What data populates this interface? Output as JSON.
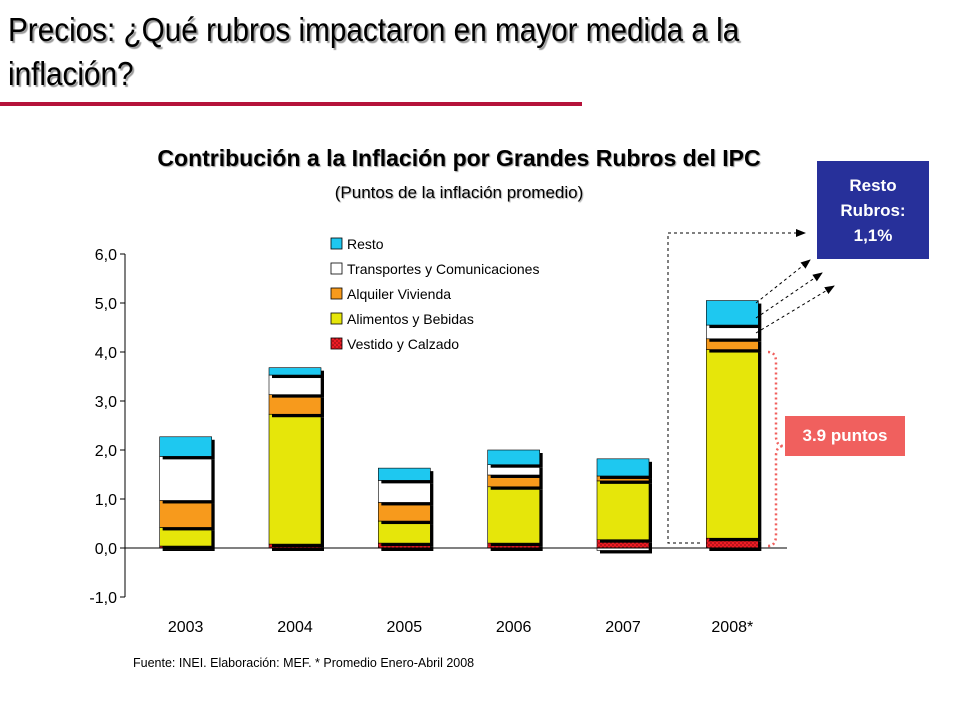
{
  "slide": {
    "title": "Precios: ¿Qué rubros impactaron en mayor medida a la inflación?",
    "source_note": "Fuente: INEI. Elaboración: MEF. * Promedio Enero-Abril 2008"
  },
  "callouts": {
    "resto_lines": [
      "Resto",
      "Rubros:",
      "1,1%"
    ],
    "points": "3.9 puntos"
  },
  "colors": {
    "resto": "#1ec8f0",
    "transportes": "#ffffff",
    "alquiler": "#f79a1c",
    "alimentos": "#e6e60a",
    "vestido": "#ee1c24",
    "title_rule": "#b5123a",
    "resto_box": "#27309a",
    "points_box": "#f0605e"
  },
  "chart_data": {
    "type": "bar",
    "stacked": true,
    "title": "Contribución a la Inflación por Grandes Rubros del IPC",
    "subtitle": "(Puntos de la inflación promedio)",
    "categories": [
      "2003",
      "2004",
      "2005",
      "2006",
      "2007",
      "2008*"
    ],
    "ylim": [
      -1.0,
      6.0
    ],
    "yticks": [
      "-1,0",
      "0,0",
      "1,0",
      "2,0",
      "3,0",
      "4,0",
      "5,0",
      "6,0"
    ],
    "legend_position": "top-center",
    "grid": false,
    "series": [
      {
        "name": "Vestido y Calzado",
        "values": [
          0.04,
          0.08,
          0.1,
          0.1,
          0.17,
          0.2
        ]
      },
      {
        "name": "Alimentos y Bebidas",
        "values": [
          0.38,
          2.65,
          0.45,
          1.15,
          1.2,
          3.85
        ]
      },
      {
        "name": "Alquiler Vivienda",
        "values": [
          0.55,
          0.4,
          0.38,
          0.24,
          0.1,
          0.22
        ]
      },
      {
        "name": "Transportes y Comunicaciones",
        "values": [
          0.9,
          0.4,
          0.45,
          0.21,
          -0.05,
          0.28
        ]
      },
      {
        "name": "Resto",
        "values": [
          0.4,
          0.15,
          0.25,
          0.3,
          0.35,
          0.5
        ]
      }
    ]
  }
}
